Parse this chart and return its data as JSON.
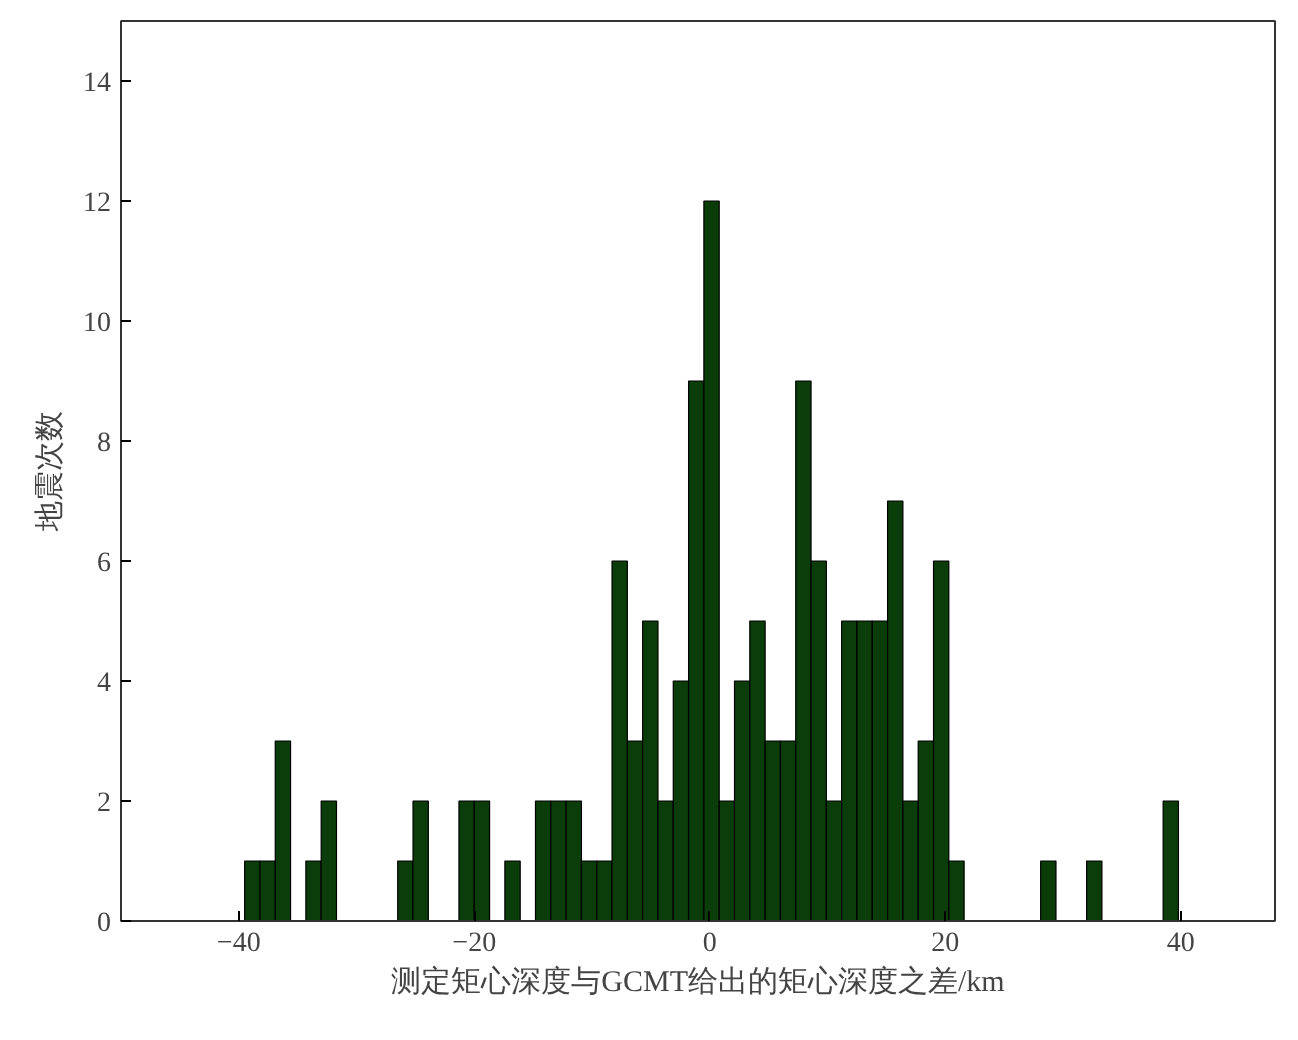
{
  "chart_data": {
    "type": "histogram",
    "xlabel": "测定矩心深度与GCMT给出的矩心深度之差/km",
    "ylabel": "地震次数",
    "bins": [
      -39.5,
      -38.2,
      -36.9,
      -35.6,
      -34.3,
      -33.0,
      -31.7,
      -30.4,
      -29.1,
      -27.8,
      -26.5,
      -25.2,
      -23.9,
      -22.6,
      -21.3,
      -20.0,
      -18.7,
      -17.4,
      -16.1,
      -14.8,
      -13.5,
      -12.2,
      -10.9,
      -9.6,
      -8.3,
      -7.0,
      -5.7,
      -4.4,
      -3.1,
      -1.8,
      -0.5,
      0.8,
      2.1,
      3.4,
      4.7,
      6.0,
      7.3,
      8.6,
      9.9,
      11.2,
      12.5,
      13.8,
      15.1,
      16.4,
      17.7,
      19.0,
      20.3,
      21.6,
      22.9,
      24.2,
      25.5,
      26.8,
      28.1,
      29.4,
      30.7,
      32.0,
      33.3,
      34.6,
      35.9,
      37.2,
      38.5,
      39.8
    ],
    "values": [
      1,
      1,
      3,
      0,
      1,
      2,
      0,
      0,
      0,
      0,
      1,
      2,
      0,
      0,
      2,
      2,
      0,
      1,
      0,
      2,
      2,
      2,
      1,
      1,
      6,
      3,
      5,
      2,
      4,
      9,
      12,
      2,
      4,
      5,
      3,
      3,
      9,
      6,
      2,
      5,
      5,
      5,
      7,
      2,
      3,
      6,
      1,
      0,
      0,
      0,
      0,
      0,
      1,
      0,
      0,
      1,
      0,
      0,
      0,
      0,
      2
    ],
    "color": "#0b3d0b",
    "xlim": [
      -50,
      48
    ],
    "ylim": [
      0,
      15
    ],
    "xticks": [
      {
        "value": -40,
        "label": "−40"
      },
      {
        "value": -20,
        "label": "−20"
      },
      0,
      20,
      40
    ],
    "yticks": [
      0,
      2,
      4,
      6,
      8,
      10,
      12,
      14
    ],
    "grid": false
  }
}
